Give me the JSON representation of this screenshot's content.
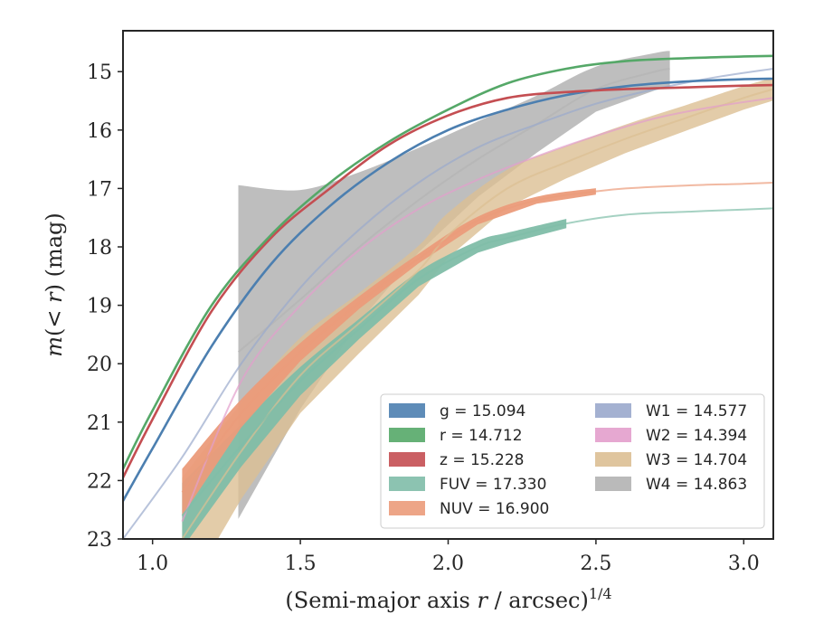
{
  "chart_data": {
    "type": "line",
    "xlabel": "(Semi-major axis r / arcsec)^1/4",
    "ylabel": "m(< r) (mag)",
    "xlim": [
      0.9,
      3.1
    ],
    "ylim": [
      23,
      14.3
    ],
    "y_inverted": true,
    "grid": false,
    "legend_placement": "lower-right",
    "xticks": [
      "1.0",
      "1.5",
      "2.0",
      "2.5",
      "3.0"
    ],
    "yticks": [
      "15",
      "16",
      "17",
      "18",
      "19",
      "20",
      "21",
      "22",
      "23"
    ],
    "series": [
      {
        "name": "g",
        "legend": "g = 15.094",
        "color": "#4c7fb0",
        "x": [
          0.9,
          1.0,
          1.2,
          1.4,
          1.6,
          1.8,
          2.0,
          2.2,
          2.4,
          2.6,
          2.8,
          3.0,
          3.1
        ],
        "y": [
          22.35,
          21.45,
          19.7,
          18.3,
          17.3,
          16.55,
          16.0,
          15.65,
          15.4,
          15.25,
          15.17,
          15.13,
          15.12
        ]
      },
      {
        "name": "r",
        "legend": "r = 14.712",
        "color": "#55a868",
        "x": [
          0.9,
          1.0,
          1.2,
          1.4,
          1.6,
          1.8,
          2.0,
          2.2,
          2.4,
          2.6,
          2.8,
          3.0,
          3.1
        ],
        "y": [
          21.8,
          20.8,
          19.0,
          17.8,
          16.9,
          16.2,
          15.65,
          15.2,
          14.95,
          14.82,
          14.77,
          14.74,
          14.73
        ]
      },
      {
        "name": "z",
        "legend": "z = 15.228",
        "color": "#c44e52",
        "x": [
          0.9,
          1.0,
          1.2,
          1.4,
          1.6,
          1.8,
          2.0,
          2.2,
          2.4,
          2.6,
          2.8,
          3.0,
          3.1
        ],
        "y": [
          21.95,
          20.95,
          19.1,
          17.85,
          17.0,
          16.25,
          15.75,
          15.45,
          15.35,
          15.3,
          15.27,
          15.24,
          15.23
        ]
      },
      {
        "name": "FUV",
        "legend": "FUV = 17.330",
        "color": "#7fbda8",
        "x": [
          1.1,
          1.3,
          1.5,
          1.7,
          1.9,
          2.1,
          2.2,
          2.4,
          2.6,
          2.8,
          3.0,
          3.1
        ],
        "y": [
          22.6,
          21.4,
          20.3,
          19.4,
          18.55,
          18.0,
          17.85,
          17.6,
          17.45,
          17.4,
          17.36,
          17.34
        ]
      },
      {
        "name": "NUV",
        "legend": "NUV = 16.900",
        "color": "#eb9b7a",
        "x": [
          1.1,
          1.3,
          1.5,
          1.7,
          1.9,
          2.1,
          2.3,
          2.5,
          2.6,
          2.8,
          3.0,
          3.1
        ],
        "y": [
          22.2,
          20.85,
          19.8,
          18.95,
          18.2,
          17.55,
          17.2,
          17.05,
          17.0,
          16.95,
          16.92,
          16.9
        ]
      },
      {
        "name": "W1",
        "legend": "W1 = 14.577",
        "color": "#9aa9cc",
        "x": [
          0.9,
          1.1,
          1.3,
          1.5,
          1.7,
          1.9,
          2.1,
          2.3,
          2.5,
          2.7,
          2.9,
          3.1
        ],
        "y": [
          23.0,
          21.6,
          20.0,
          18.7,
          17.7,
          16.9,
          16.3,
          15.9,
          15.55,
          15.3,
          15.1,
          14.95
        ]
      },
      {
        "name": "W2",
        "legend": "W2 = 14.394",
        "color": "#e39ecc",
        "x": [
          1.1,
          1.3,
          1.5,
          1.7,
          1.9,
          2.1,
          2.3,
          2.5,
          2.7,
          2.9,
          3.1
        ],
        "y": [
          22.7,
          20.3,
          19.0,
          18.05,
          17.35,
          16.85,
          16.45,
          16.1,
          15.8,
          15.6,
          15.45
        ]
      },
      {
        "name": "W3",
        "legend": "W3 = 14.704",
        "color": "#dcbf93",
        "x": [
          1.1,
          1.3,
          1.5,
          1.7,
          1.9,
          2.0,
          2.2,
          2.4,
          2.6,
          2.8,
          3.0,
          3.1
        ],
        "y": [
          23.0,
          21.5,
          20.2,
          19.3,
          18.4,
          17.8,
          17.0,
          16.55,
          16.15,
          15.8,
          15.45,
          15.3
        ]
      },
      {
        "name": "W4",
        "legend": "W4 = 14.863",
        "color": "#b3b3b3",
        "x": [
          1.29,
          1.5,
          1.7,
          1.9,
          2.1,
          2.3,
          2.5,
          2.7,
          2.75
        ],
        "y": [
          19.8,
          18.9,
          18.0,
          17.2,
          16.5,
          15.9,
          15.3,
          15.0,
          14.95
        ]
      }
    ]
  }
}
